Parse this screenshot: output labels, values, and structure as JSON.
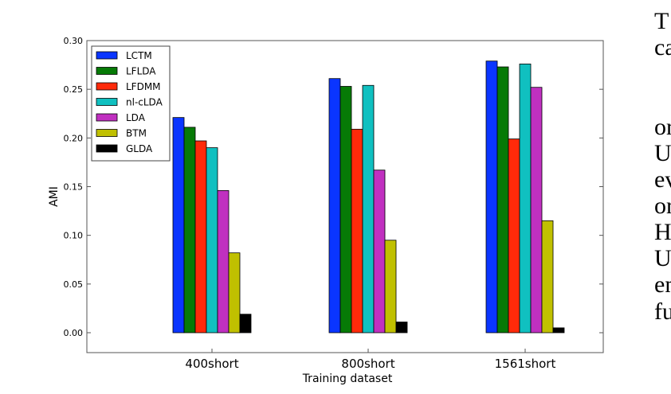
{
  "chart_data": {
    "type": "bar",
    "title": "",
    "xlabel": "Training dataset",
    "ylabel": "AMI",
    "ylim": [
      -0.02,
      0.3
    ],
    "yticks": [
      "0.00",
      "0.05",
      "0.10",
      "0.15",
      "0.20",
      "0.25",
      "0.30"
    ],
    "grid": false,
    "legend_position": "upper left",
    "categories": [
      "400short",
      "800short",
      "1561short"
    ],
    "series": [
      {
        "name": "LCTM",
        "color": "#0a35ff",
        "values": [
          0.221,
          0.261,
          0.279
        ]
      },
      {
        "name": "LFLDA",
        "color": "#067a06",
        "values": [
          0.211,
          0.253,
          0.273
        ]
      },
      {
        "name": "LFDMM",
        "color": "#ff2a0a",
        "values": [
          0.197,
          0.209,
          0.199
        ]
      },
      {
        "name": "nl-cLDA",
        "color": "#10c0c0",
        "values": [
          0.19,
          0.254,
          0.276
        ]
      },
      {
        "name": "LDA",
        "color": "#c030c0",
        "values": [
          0.146,
          0.167,
          0.252
        ]
      },
      {
        "name": "BTM",
        "color": "#c0c000",
        "values": [
          0.082,
          0.095,
          0.115
        ]
      },
      {
        "name": "GLDA",
        "color": "#000000",
        "values": [
          0.019,
          0.011,
          0.005
        ]
      }
    ]
  },
  "side_text": [
    "T",
    "ca",
    "",
    "o",
    "U",
    "e",
    "o",
    "H",
    "U",
    "e",
    "fu"
  ]
}
